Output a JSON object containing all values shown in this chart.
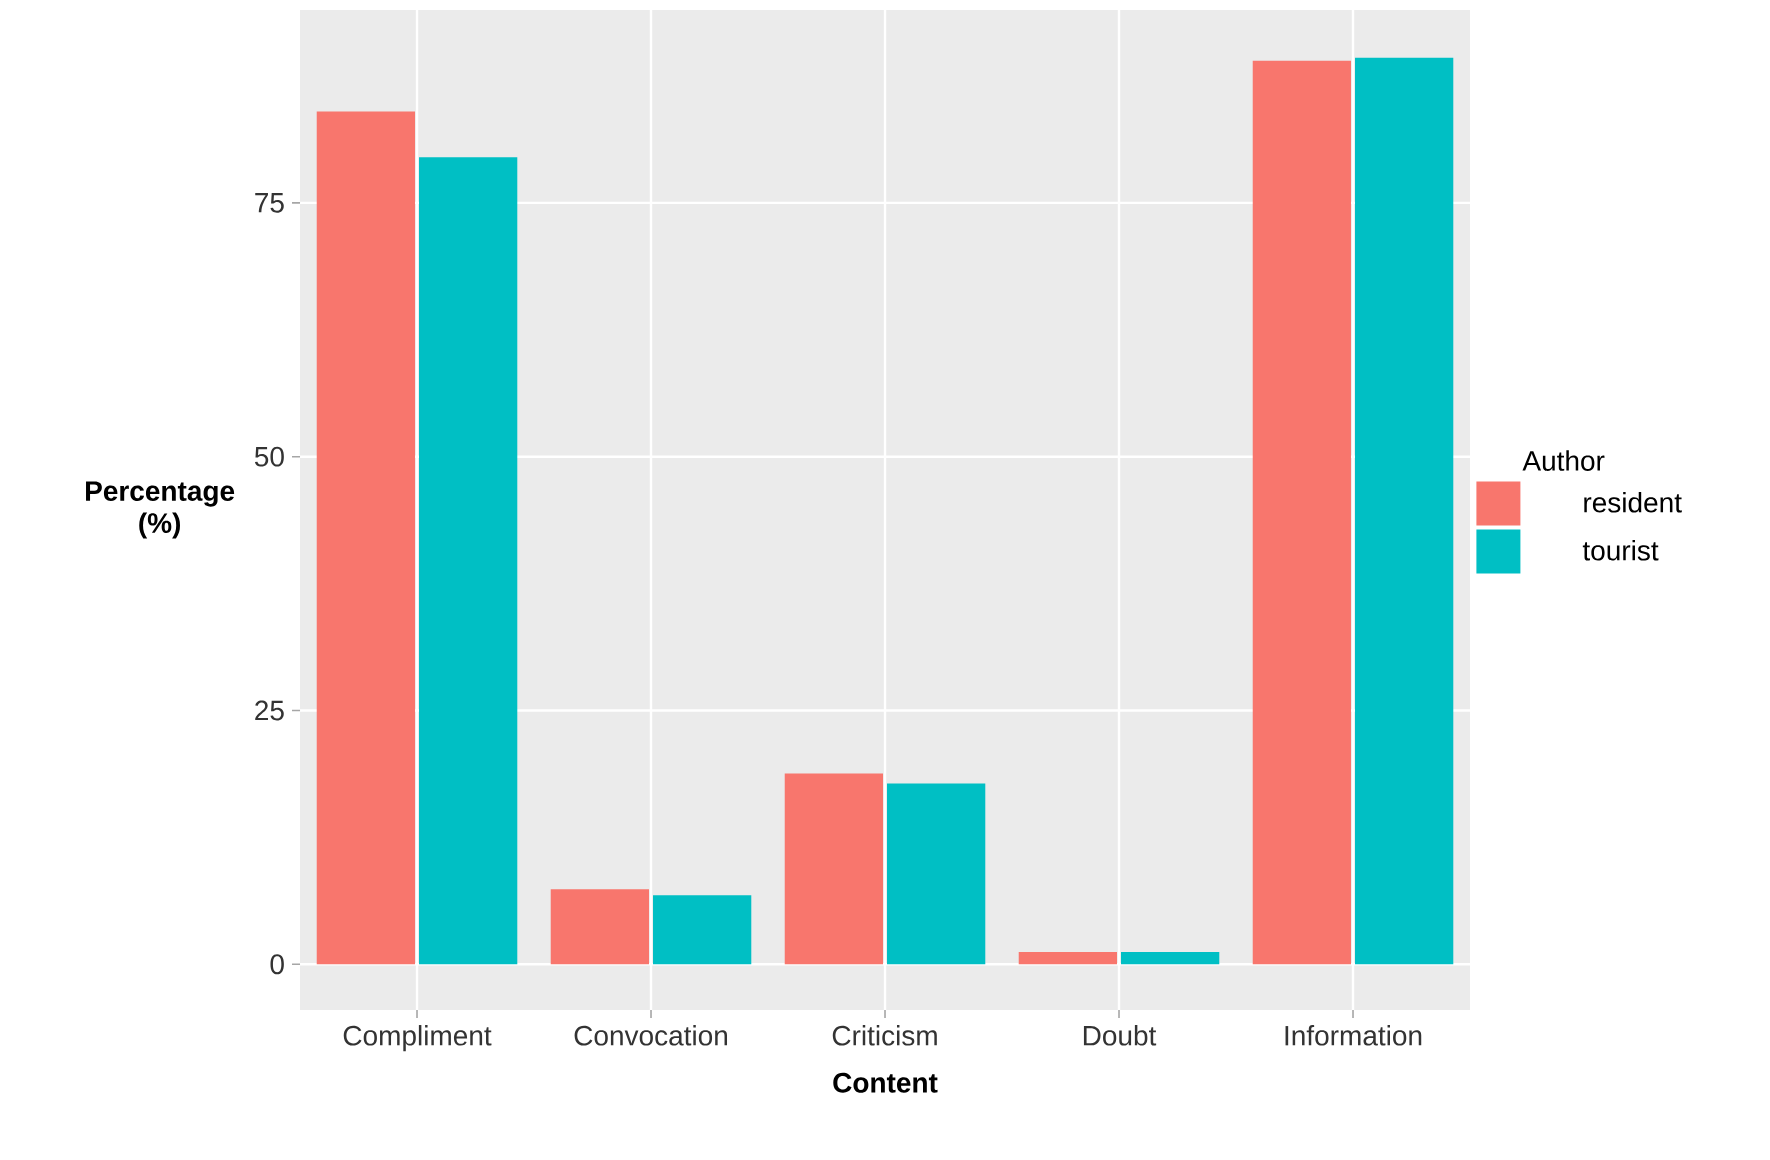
{
  "chart_data": {
    "type": "bar",
    "xlabel": "Content",
    "ylabel": "Percentage (%)",
    "legend_title": "Author",
    "categories": [
      "Compliment",
      "Convocation",
      "Criticism",
      "Doubt",
      "Information"
    ],
    "series": [
      {
        "name": "resident",
        "color": "#f8766d",
        "values": [
          84,
          7.4,
          18.8,
          1.2,
          89
        ]
      },
      {
        "name": "tourist",
        "color": "#00bfc4",
        "values": [
          79.5,
          6.8,
          17.8,
          1.2,
          89.3
        ]
      }
    ],
    "ylim": [
      -4.5,
      94
    ],
    "yticks": [
      0,
      25,
      50,
      75
    ],
    "grid": true,
    "legend": "right"
  }
}
